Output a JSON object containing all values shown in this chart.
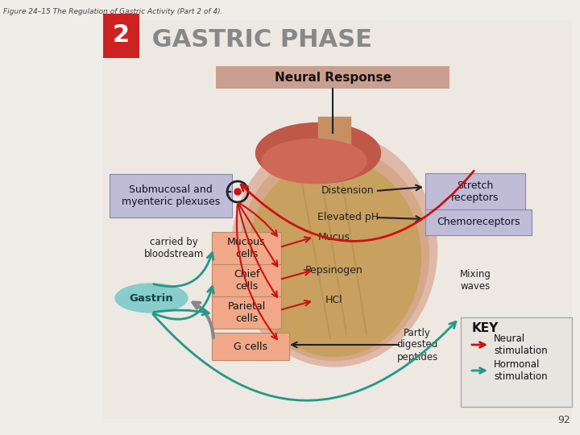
{
  "fig_title": "Figure 24–15 The Regulation of Gastric Activity (Part 2 of 4).",
  "phase_number": "2",
  "phase_title": " GASTRIC PHASE",
  "phase_title_color": "#888888",
  "phase_number_bg": "#cc2222",
  "neural_response_label": "Neural Response",
  "neural_response_bg": "#c9a090",
  "background_outer": "#f0ece8",
  "background_inner": "#ede8e2",
  "box_blue_color": "#c0bcd8",
  "box_orange_color": "#f0a888",
  "gastrin_color": "#88cccc",
  "arrow_neural_color": "#cc1111",
  "arrow_hormonal_color": "#229988",
  "arrow_black_color": "#222222",
  "stomach_outer": "#e0b8a8",
  "stomach_mid": "#d4a888",
  "stomach_inner": "#c8a060",
  "stomach_fold": "#b89050",
  "esoph_color": "#c89060",
  "upper_red1": "#c05848",
  "upper_red2": "#d06858",
  "labels": {
    "submucosal": "Submucosal and\nmyenteric plexuses",
    "distension": "Distension",
    "stretch": "Stretch\nreceptors",
    "elevated_ph": "Elevated pH",
    "chemoreceptors": "Chemoreceptors",
    "carried_by": "carried by\nbloodstream",
    "mucous_cells": "Mucous\ncells",
    "chief_cells": "Chief\ncells",
    "parietal_cells": "Parietal\ncells",
    "g_cells": "G cells",
    "mucus": "Mucus",
    "pepsinogen": "Pepsinogen",
    "hcl": "HCl",
    "partly_digested": "Partly\ndigested\npeptides",
    "mixing_waves": "Mixing\nwaves",
    "gastrin": "Gastrin",
    "key_title": "KEY",
    "neural_stim": "Neural\nstimulation",
    "hormonal_stim": "Hormonal\nstimulation"
  },
  "page_number": "92"
}
